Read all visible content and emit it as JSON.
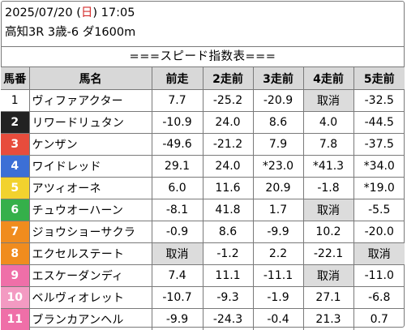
{
  "header": {
    "date": "2025/07/20",
    "weekday_open": "(",
    "weekday": "日",
    "weekday_close": ")",
    "time": "17:05",
    "race": "高知3R 3歳-6 ダ1600m"
  },
  "title": "===スピード指数表===",
  "columns": [
    "馬番",
    "馬名",
    "前走",
    "2走前",
    "3走前",
    "4走前",
    "5走前"
  ],
  "cancel_label": "取消",
  "gate_colors": {
    "1": "#ffffff",
    "2": "#222222",
    "3": "#e74c3c",
    "4": "#3c6fd6",
    "5": "#f2d22e",
    "6": "#35b04a",
    "7": "#f08c1e",
    "8": "#f08c1e",
    "9": "#ef6fa8",
    "10": "#f39ac2",
    "11": "#ef6fa8"
  },
  "rows": [
    {
      "num": "1",
      "name": "ヴィファアクター",
      "vals": [
        "7.7",
        "-25.2",
        "-20.9",
        "取消",
        "-32.5"
      ]
    },
    {
      "num": "2",
      "name": "リワードリュタン",
      "vals": [
        "-10.9",
        "24.0",
        "8.6",
        "4.0",
        "-44.5"
      ]
    },
    {
      "num": "3",
      "name": "ケンザン",
      "vals": [
        "-49.6",
        "-21.2",
        "7.9",
        "7.8",
        "-37.5"
      ]
    },
    {
      "num": "4",
      "name": "ワイドレッド",
      "vals": [
        "29.1",
        "24.0",
        "*23.0",
        "*41.3",
        "*34.0"
      ]
    },
    {
      "num": "5",
      "name": "アツィオーネ",
      "vals": [
        "6.0",
        "11.6",
        "20.9",
        "-1.8",
        "*19.0"
      ]
    },
    {
      "num": "6",
      "name": "チュウオーハーン",
      "vals": [
        "-8.1",
        "41.8",
        "1.7",
        "取消",
        "-5.5"
      ]
    },
    {
      "num": "7",
      "name": "ジョウショーサクラ",
      "vals": [
        "-0.9",
        "8.6",
        "-9.9",
        "10.2",
        "-20.0"
      ]
    },
    {
      "num": "8",
      "name": "エクセルステート",
      "vals": [
        "取消",
        "-1.2",
        "2.2",
        "-22.1",
        "取消"
      ]
    },
    {
      "num": "9",
      "name": "エスケーダンディ",
      "vals": [
        "7.4",
        "11.1",
        "-11.1",
        "取消",
        "-11.0"
      ]
    },
    {
      "num": "10",
      "name": "ベルヴィオレット",
      "vals": [
        "-10.7",
        "-9.3",
        "-1.9",
        "27.1",
        "-6.8"
      ]
    },
    {
      "num": "11",
      "name": "ブランカアンヘル",
      "vals": [
        "-9.9",
        "-24.3",
        "-0.4",
        "21.3",
        "0.7"
      ]
    }
  ]
}
